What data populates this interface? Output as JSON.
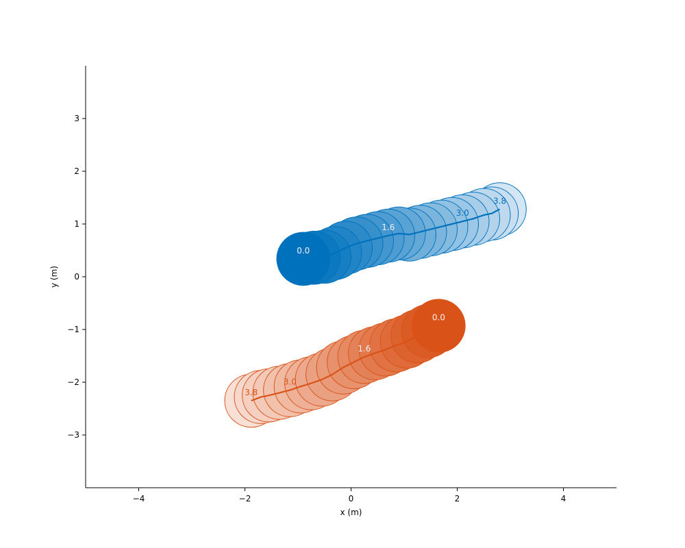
{
  "chart_data": {
    "type": "scatter",
    "xlabel": "x (m)",
    "ylabel": "y (m)",
    "xlim": [
      -5,
      5
    ],
    "ylim": [
      -4,
      4
    ],
    "xticks": [
      -4,
      -2,
      0,
      2,
      4
    ],
    "yticks": [
      -3,
      -2,
      -1,
      0,
      1,
      2,
      3
    ],
    "xtick_labels": [
      "−4",
      "−2",
      "0",
      "2",
      "4"
    ],
    "ytick_labels": [
      "−3",
      "−2",
      "−1",
      "0",
      "1",
      "2",
      "3"
    ],
    "circle_radius_m": 0.5,
    "grid": false,
    "series": [
      {
        "color": "#0072bd",
        "fill_start": "#0072bd",
        "fill_end": "#d4e5f4",
        "x": [
          -0.9,
          -0.7,
          -0.5,
          -0.3,
          -0.1,
          0.1,
          0.3,
          0.5,
          0.7,
          0.9,
          1.1,
          1.3,
          1.5,
          1.7,
          1.9,
          2.1,
          2.3,
          2.5,
          2.65,
          2.8
        ],
        "y": [
          0.34,
          0.36,
          0.38,
          0.45,
          0.55,
          0.63,
          0.68,
          0.73,
          0.78,
          0.82,
          0.8,
          0.85,
          0.9,
          0.95,
          1.0,
          1.05,
          1.1,
          1.17,
          1.2,
          1.28
        ],
        "time_labels": [
          {
            "index": 0,
            "text": "0.0"
          },
          {
            "index": 8,
            "text": "1.6"
          },
          {
            "index": 15,
            "text": "3.0"
          },
          {
            "index": 19,
            "text": "3.8"
          }
        ]
      },
      {
        "color": "#d95319",
        "fill_start": "#d95319",
        "fill_end": "#f8e0d6",
        "x": [
          1.65,
          1.45,
          1.25,
          1.05,
          0.85,
          0.65,
          0.45,
          0.25,
          0.05,
          -0.15,
          -0.35,
          -0.55,
          -0.75,
          -0.95,
          -1.15,
          -1.35,
          -1.55,
          -1.7,
          -1.88
        ],
        "y": [
          -0.93,
          -1.03,
          -1.13,
          -1.23,
          -1.3,
          -1.38,
          -1.45,
          -1.52,
          -1.62,
          -1.72,
          -1.85,
          -1.95,
          -2.02,
          -2.08,
          -2.15,
          -2.2,
          -2.25,
          -2.28,
          -2.35
        ],
        "time_labels": [
          {
            "index": 0,
            "text": "0.0"
          },
          {
            "index": 7,
            "text": "1.6"
          },
          {
            "index": 14,
            "text": "3.0"
          },
          {
            "index": 18,
            "text": "3.8"
          }
        ]
      }
    ]
  }
}
